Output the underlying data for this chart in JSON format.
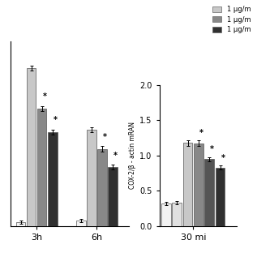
{
  "left_panel": {
    "groups": [
      "3h",
      "6h"
    ],
    "g1_vals": [
      0.05,
      1.88,
      1.82,
      1.4,
      1.12
    ],
    "g2_vals": [
      0.06,
      0.08,
      0.09,
      1.15,
      1.12,
      0.92,
      0.7
    ],
    "g1_vals_final": [
      0.05,
      1.88,
      1.4,
      1.12
    ],
    "g2_vals_final": [
      0.07,
      1.15,
      0.92,
      0.7
    ],
    "g1_err": [
      0.02,
      0.03,
      0.03,
      0.03
    ],
    "g2_err": [
      0.02,
      0.03,
      0.03,
      0.03
    ],
    "bar_colors": [
      "#f2f2f2",
      "#c8c8c8",
      "#888888",
      "#303030"
    ],
    "ylim": [
      0,
      2.2
    ]
  },
  "right_panel": {
    "group_label": "30 mi",
    "r_vals": [
      0.32,
      0.33,
      1.18,
      1.17,
      0.95,
      0.83
    ],
    "r_err": [
      0.02,
      0.02,
      0.04,
      0.04,
      0.03,
      0.03
    ],
    "bar_colors": [
      "#f2f2f2",
      "#e0e0e0",
      "#c8c8c8",
      "#888888",
      "#555555",
      "#303030"
    ],
    "ylim": [
      0,
      2.0
    ],
    "yticks": [
      0.0,
      0.5,
      1.0,
      1.5,
      2.0
    ],
    "ylabel": "COX-2/β - actin mRAN"
  },
  "legend_labels": [
    "1 μg/m",
    "1 μg/m",
    "1 μg/m"
  ],
  "legend_colors": [
    "#c8c8c8",
    "#888888",
    "#303030"
  ],
  "background_color": "#ffffff"
}
